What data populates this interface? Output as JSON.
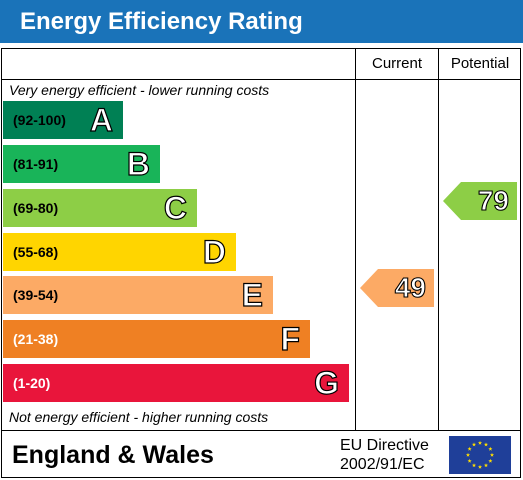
{
  "title": "Energy Efficiency Rating",
  "columns": {
    "current": "Current",
    "potential": "Potential"
  },
  "top_note": "Very energy efficient - lower running costs",
  "bottom_note": "Not energy efficient - higher running costs",
  "bands": [
    {
      "range": "(92-100)",
      "letter": "A",
      "color": "#008054"
    },
    {
      "range": "(81-91)",
      "letter": "B",
      "color": "#19b459"
    },
    {
      "range": "(69-80)",
      "letter": "C",
      "color": "#8dce46"
    },
    {
      "range": "(55-68)",
      "letter": "D",
      "color": "#ffd500"
    },
    {
      "range": "(39-54)",
      "letter": "E",
      "color": "#fcaa65"
    },
    {
      "range": "(21-38)",
      "letter": "F",
      "color": "#ef8023"
    },
    {
      "range": "(1-20)",
      "letter": "G",
      "color": "#e9153b"
    }
  ],
  "current": {
    "value": "49",
    "band": "E",
    "color": "#fcaa65"
  },
  "potential": {
    "value": "79",
    "band": "C",
    "color": "#8dce46"
  },
  "footer": {
    "region": "England & Wales",
    "directive_line1": "EU Directive",
    "directive_line2": "2002/91/EC",
    "flag_icon": "eu-flag-icon"
  },
  "colors": {
    "title_bar": "#1a73b9",
    "eu_flag": "#1f3f99",
    "eu_stars": "#ffdd00"
  }
}
